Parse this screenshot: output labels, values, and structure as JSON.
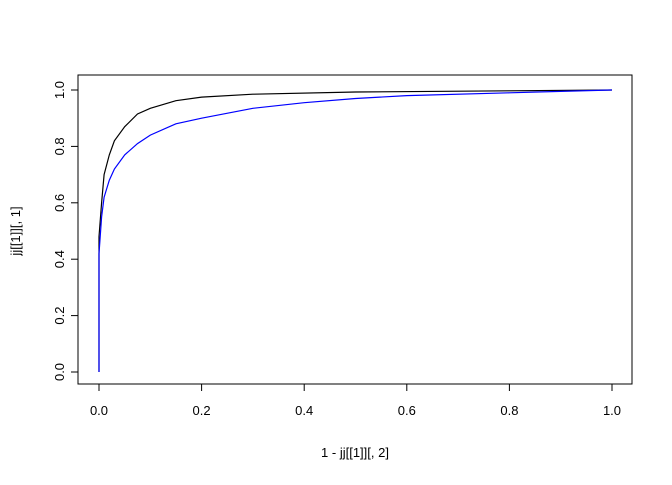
{
  "chart_data": {
    "type": "line",
    "title": "",
    "xlabel": "1 - jj[[1]][, 2]",
    "ylabel": "jj[[1]][, 1]",
    "xlim": [
      0,
      1
    ],
    "ylim": [
      0,
      1
    ],
    "grid": false,
    "xticks": [
      "0.0",
      "0.2",
      "0.4",
      "0.6",
      "0.8",
      "1.0"
    ],
    "yticks": [
      "0.0",
      "0.2",
      "0.4",
      "0.6",
      "0.8",
      "1.0"
    ],
    "series": [
      {
        "color": "#000000",
        "x": [
          0,
          0,
          0.005,
          0.01,
          0.02,
          0.03,
          0.05,
          0.075,
          0.1,
          0.15,
          0.2,
          0.3,
          0.5,
          0.8,
          1.0
        ],
        "y": [
          0,
          0.48,
          0.6,
          0.7,
          0.77,
          0.82,
          0.87,
          0.915,
          0.935,
          0.962,
          0.975,
          0.985,
          0.993,
          0.997,
          1.0
        ]
      },
      {
        "color": "#0000ff",
        "x": [
          0,
          0,
          0.005,
          0.01,
          0.02,
          0.03,
          0.05,
          0.075,
          0.1,
          0.15,
          0.2,
          0.3,
          0.4,
          0.5,
          0.6,
          0.8,
          0.9,
          1.0
        ],
        "y": [
          0,
          0.42,
          0.55,
          0.62,
          0.68,
          0.72,
          0.77,
          0.81,
          0.84,
          0.88,
          0.9,
          0.935,
          0.955,
          0.97,
          0.98,
          0.99,
          0.995,
          1.0
        ]
      }
    ]
  }
}
